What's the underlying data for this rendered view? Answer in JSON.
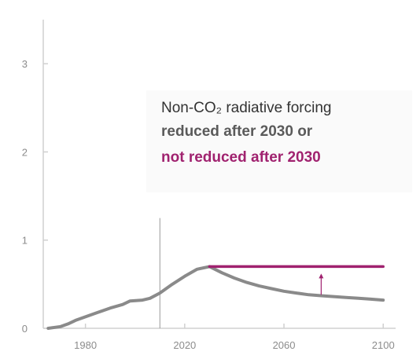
{
  "chart_data": {
    "type": "line",
    "title": "",
    "xlabel": "",
    "ylabel": "",
    "xlim": [
      1963,
      2105
    ],
    "ylim": [
      0,
      3.5
    ],
    "x_ticks": [
      1980,
      2020,
      2060,
      2100
    ],
    "y_ticks": [
      0,
      1,
      2,
      3
    ],
    "grid": false,
    "reference_line_x": 2010,
    "annotation": {
      "line1": "Non-CO₂ radiative forcing",
      "line2": "reduced after 2030 or",
      "line3": "not reduced after 2030"
    },
    "series": [
      {
        "name": "reduced after 2030",
        "color": "#8a8a8a",
        "points": [
          [
            1965,
            0.0
          ],
          [
            1970,
            0.02
          ],
          [
            1973,
            0.05
          ],
          [
            1976,
            0.09
          ],
          [
            1980,
            0.13
          ],
          [
            1985,
            0.18
          ],
          [
            1990,
            0.23
          ],
          [
            1995,
            0.27
          ],
          [
            1998,
            0.31
          ],
          [
            2003,
            0.32
          ],
          [
            2006,
            0.34
          ],
          [
            2010,
            0.4
          ],
          [
            2015,
            0.5
          ],
          [
            2020,
            0.59
          ],
          [
            2025,
            0.67
          ],
          [
            2030,
            0.7
          ],
          [
            2035,
            0.63
          ],
          [
            2040,
            0.57
          ],
          [
            2045,
            0.52
          ],
          [
            2050,
            0.48
          ],
          [
            2055,
            0.45
          ],
          [
            2060,
            0.42
          ],
          [
            2065,
            0.4
          ],
          [
            2070,
            0.38
          ],
          [
            2075,
            0.37
          ],
          [
            2080,
            0.36
          ],
          [
            2085,
            0.35
          ],
          [
            2090,
            0.34
          ],
          [
            2095,
            0.33
          ],
          [
            2100,
            0.32
          ]
        ]
      },
      {
        "name": "not reduced after 2030",
        "color": "#a0226f",
        "points": [
          [
            2030,
            0.7
          ],
          [
            2100,
            0.7
          ]
        ]
      }
    ],
    "arrow": {
      "x": 2075,
      "from": 0.38,
      "to": 0.62,
      "color": "#a0226f"
    }
  }
}
